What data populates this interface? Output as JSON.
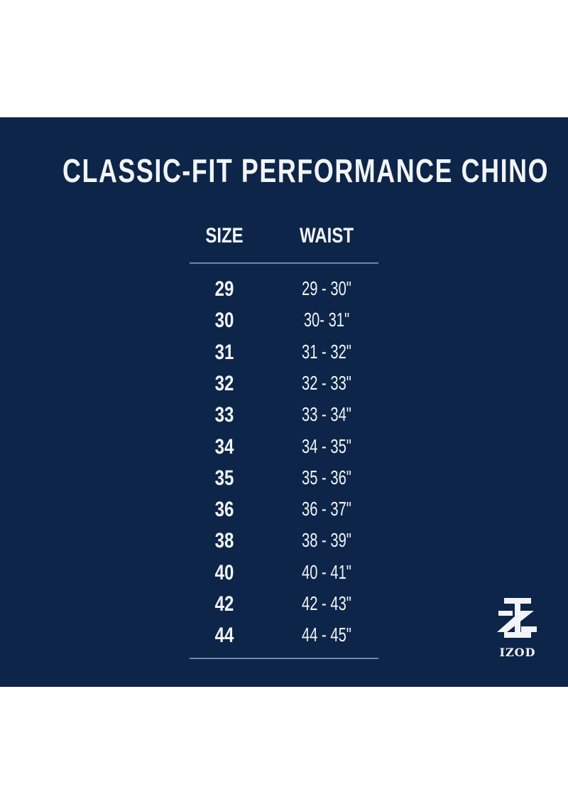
{
  "title": "CLASSIC-FIT PERFORMANCE CHINO",
  "headers": {
    "size": "SIZE",
    "waist": "WAIST"
  },
  "rows": [
    {
      "size": "29",
      "waist": "29 - 30\""
    },
    {
      "size": "30",
      "waist": "30- 31\""
    },
    {
      "size": "31",
      "waist": "31 - 32\""
    },
    {
      "size": "32",
      "waist": "32 - 33\""
    },
    {
      "size": "33",
      "waist": "33 - 34\""
    },
    {
      "size": "34",
      "waist": "34 - 35\""
    },
    {
      "size": "35",
      "waist": "35 - 36\""
    },
    {
      "size": "36",
      "waist": "36 - 37\""
    },
    {
      "size": "38",
      "waist": "38 - 39\""
    },
    {
      "size": "40",
      "waist": "40 - 41\""
    },
    {
      "size": "42",
      "waist": "42 - 43\""
    },
    {
      "size": "44",
      "waist": "44 - 45\""
    }
  ],
  "logo": {
    "text": "IZOD"
  },
  "colors": {
    "background": "#0d2548",
    "text": "#f2f4f8"
  }
}
